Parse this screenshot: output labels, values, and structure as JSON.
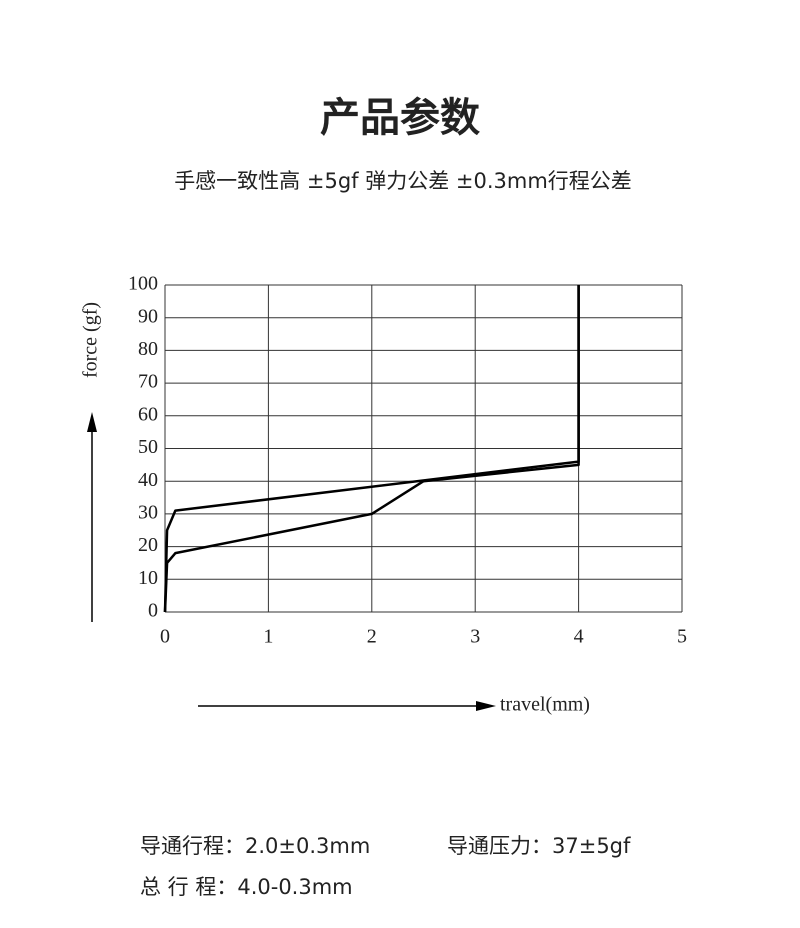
{
  "title": "产品参数",
  "subtitle": "手感一致性高  ±5gf 弹力公差  ±0.3mm行程公差",
  "specs": [
    "导通行程：2.0±0.3mm",
    "导通压力：37±5gf",
    "总 行 程：4.0-0.3mm"
  ],
  "chart_data": {
    "type": "line",
    "y_label": "force (gf)",
    "x_label": "travel(mm)",
    "xlim": [
      0,
      5
    ],
    "xticks": [
      0,
      1,
      2,
      3,
      4,
      5
    ],
    "ylim": [
      0,
      100
    ],
    "yticks": [
      0,
      10,
      20,
      30,
      40,
      50,
      60,
      70,
      80,
      90,
      100
    ],
    "grid": true,
    "series": [
      {
        "color": "#000000",
        "x": [
          0,
          0.02,
          0.1,
          2,
          2.5,
          4,
          4
        ],
        "values": [
          0,
          15,
          18,
          30,
          40,
          45,
          100
        ]
      },
      {
        "color": "#000000",
        "x": [
          0,
          0.02,
          0.1,
          4,
          4
        ],
        "values": [
          0,
          25,
          31,
          46,
          100
        ]
      }
    ]
  }
}
